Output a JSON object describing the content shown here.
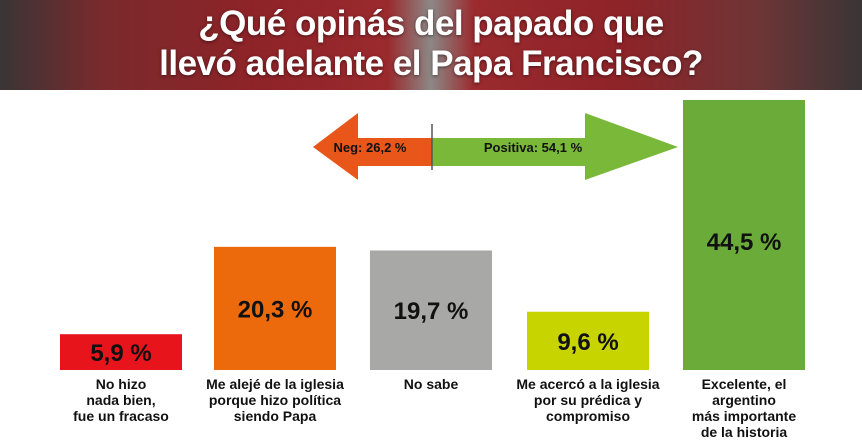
{
  "title_line1": "¿Qué opinás del papado que",
  "title_line2": "llevó adelante el Papa Francisco?",
  "chart_data": {
    "type": "bar",
    "title": "¿Qué opinás del papado que llevó adelante el Papa Francisco?",
    "categories": [
      "No hizo nada bien, fue un fracaso",
      "Me alejé de la iglesia porque hizo política siendo Papa",
      "No sabe",
      "Me acercó a la iglesia por su prédica y compromiso",
      "Excelente, el argentino más importante de la historia"
    ],
    "category_lines": [
      [
        "No hizo",
        "nada bien,",
        "fue un fracaso"
      ],
      [
        "Me alejé de la iglesia",
        "porque hizo política",
        "siendo Papa"
      ],
      [
        "No sabe"
      ],
      [
        "Me acercó a la iglesia",
        "por su prédica y",
        "compromiso"
      ],
      [
        "Excelente, el argentino",
        "más importante",
        "de la historia"
      ]
    ],
    "values": [
      5.9,
      20.3,
      19.7,
      9.6,
      44.5
    ],
    "value_labels": [
      "5,9 %",
      "20,3 %",
      "19,7 %",
      "9,6 %",
      "44,5 %"
    ],
    "colors": [
      "#e8141c",
      "#ec6a0c",
      "#a8a8a6",
      "#c8d400",
      "#6aab3a"
    ],
    "annotations": {
      "negative": {
        "label": "Neg: 26,2 %",
        "value": 26.2,
        "color": "#e8561a"
      },
      "positive": {
        "label": "Positiva: 54,1 %",
        "value": 54.1,
        "color": "#7ab83a"
      }
    }
  }
}
